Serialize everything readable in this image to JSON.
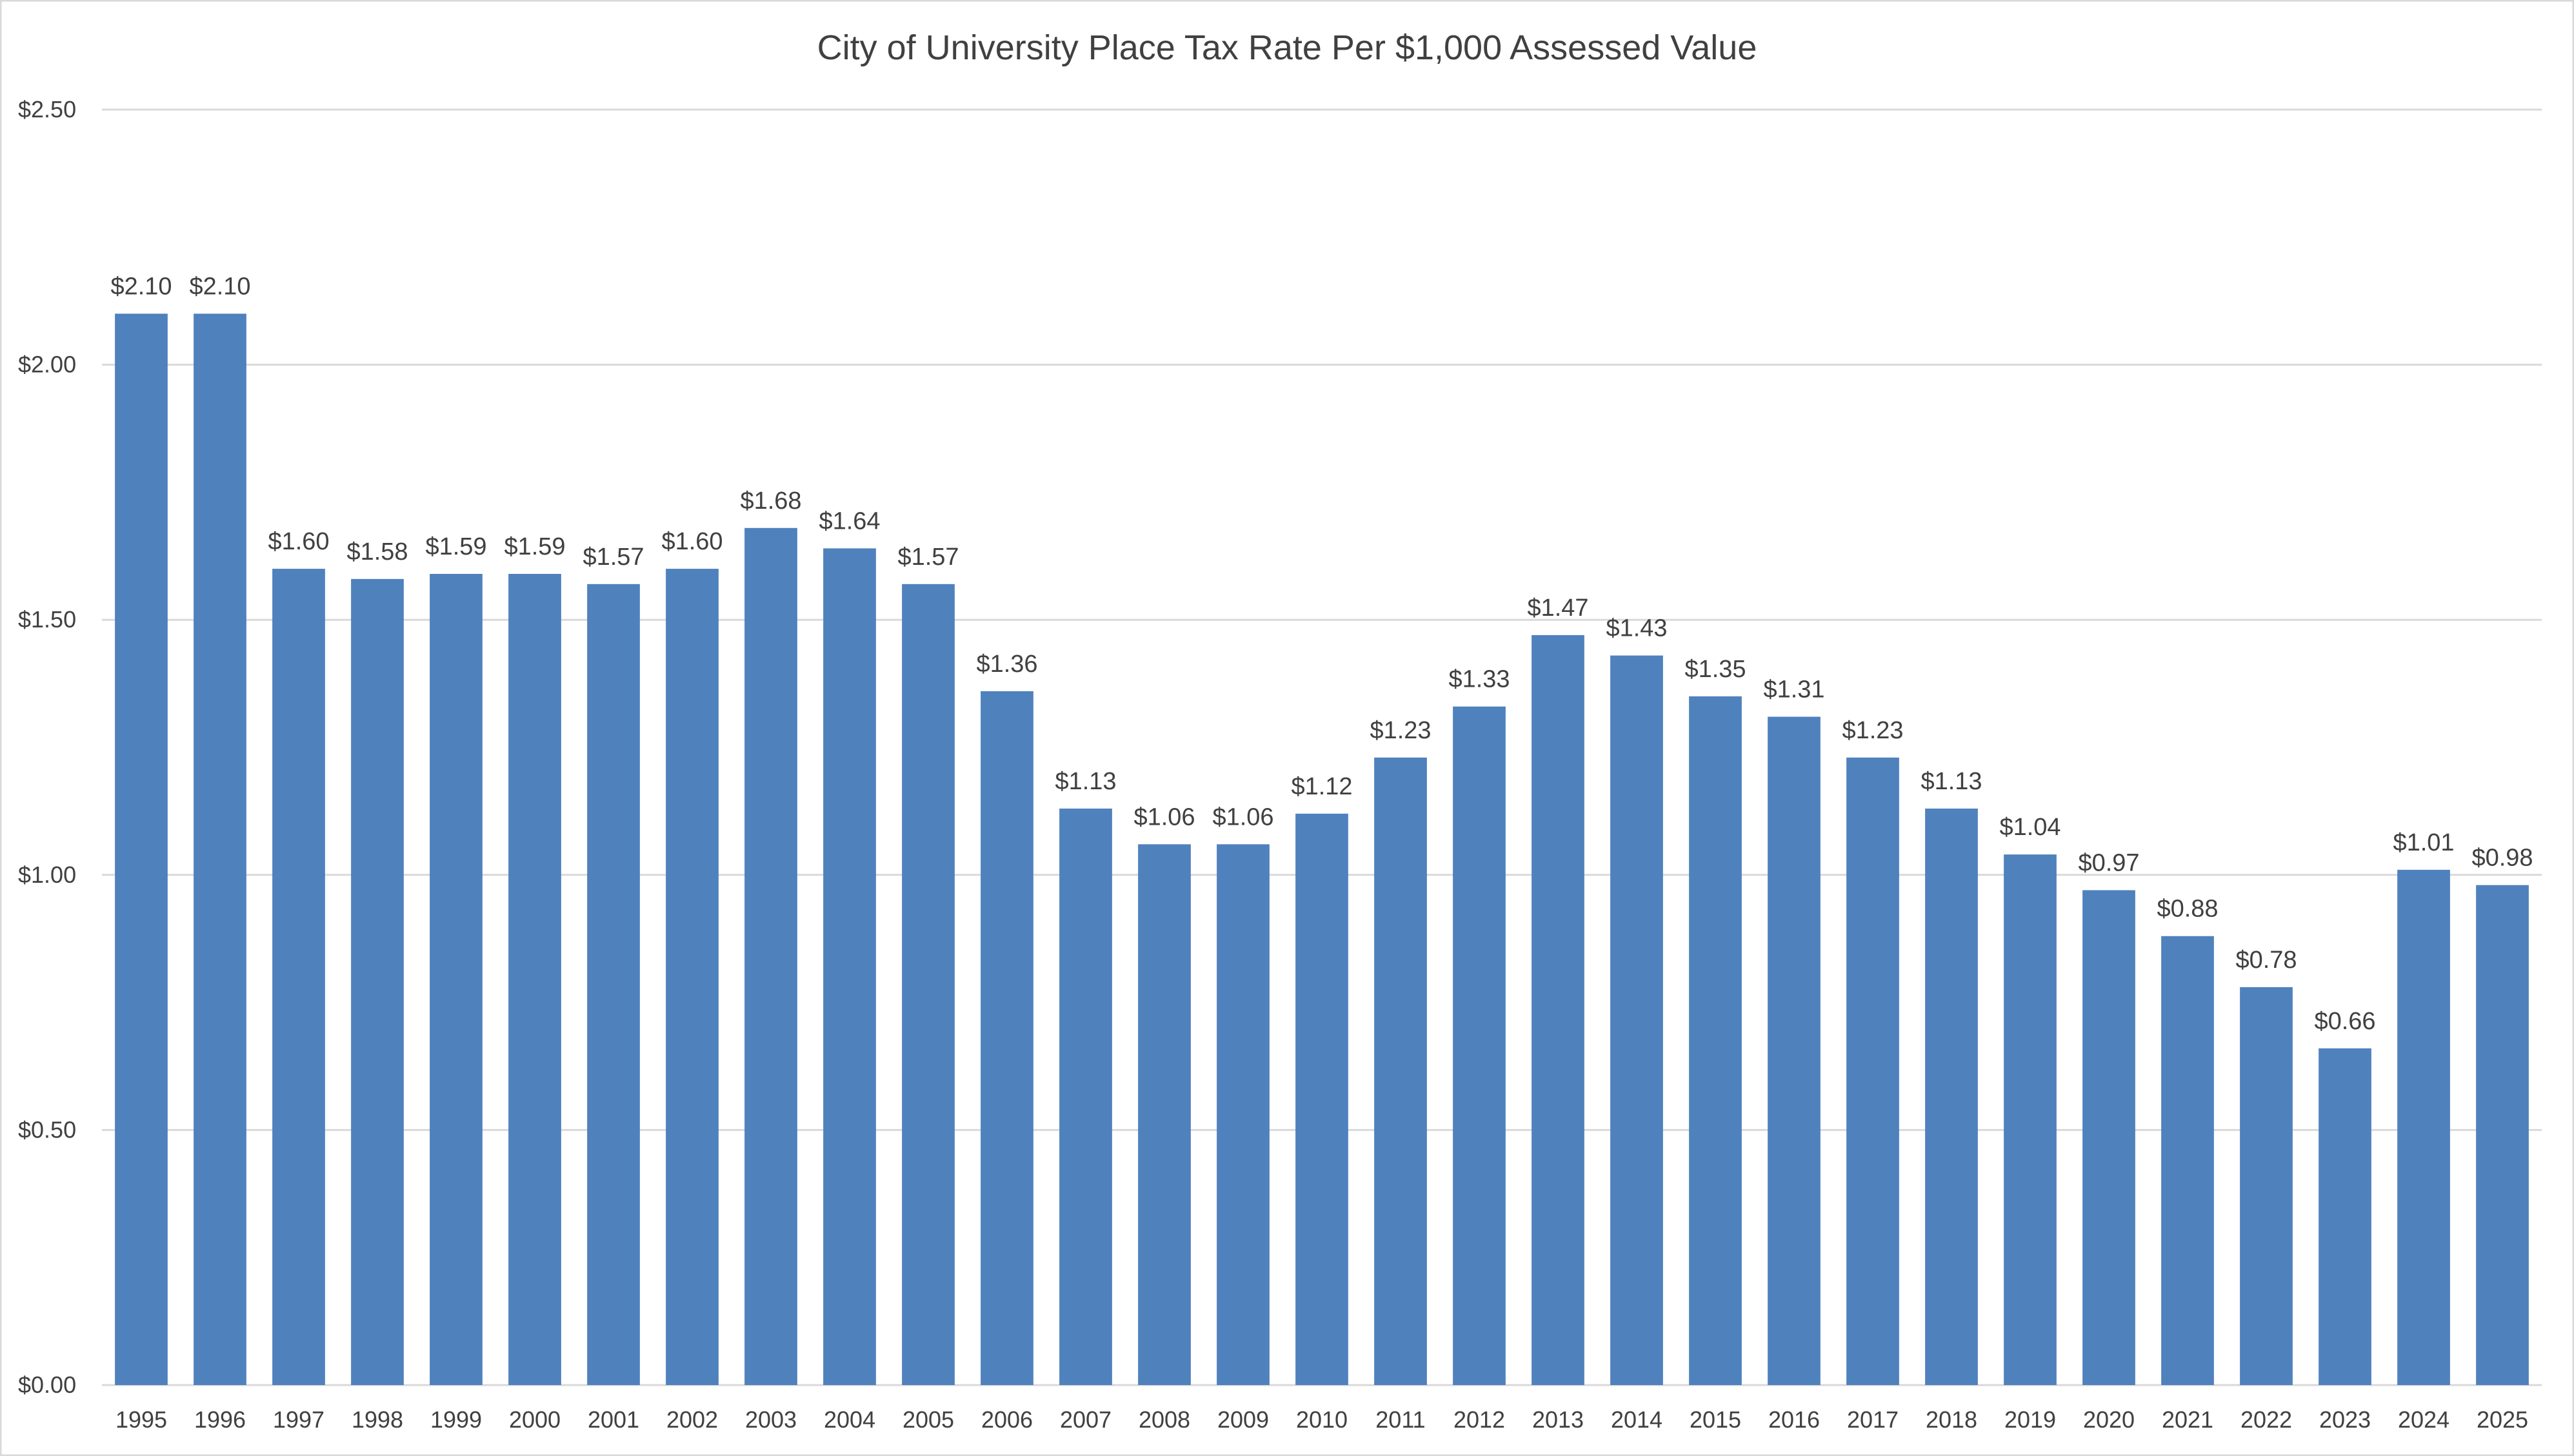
{
  "chart_data": {
    "type": "bar",
    "title": "City of University Place Tax Rate Per $1,000 Assessed Value",
    "xlabel": "",
    "ylabel": "",
    "ylim": [
      0,
      2.5
    ],
    "y_ticks": [
      "$0.00",
      "$0.50",
      "$1.00",
      "$1.50",
      "$2.00",
      "$2.50"
    ],
    "grid": true,
    "bar_color": "#4f81bd",
    "categories": [
      "1995",
      "1996",
      "1997",
      "1998",
      "1999",
      "2000",
      "2001",
      "2002",
      "2003",
      "2004",
      "2005",
      "2006",
      "2007",
      "2008",
      "2009",
      "2010",
      "2011",
      "2012",
      "2013",
      "2014",
      "2015",
      "2016",
      "2017",
      "2018",
      "2019",
      "2020",
      "2021",
      "2022",
      "2023",
      "2024",
      "2025"
    ],
    "values": [
      2.1,
      2.1,
      1.6,
      1.58,
      1.59,
      1.59,
      1.57,
      1.6,
      1.68,
      1.64,
      1.57,
      1.36,
      1.13,
      1.06,
      1.06,
      1.12,
      1.23,
      1.33,
      1.47,
      1.43,
      1.35,
      1.31,
      1.23,
      1.13,
      1.04,
      0.97,
      0.88,
      0.78,
      0.66,
      1.01,
      0.98
    ],
    "data_labels": [
      "$2.10",
      "$2.10",
      "$1.60",
      "$1.58",
      "$1.59",
      "$1.59",
      "$1.57",
      "$1.60",
      "$1.68",
      "$1.64",
      "$1.57",
      "$1.36",
      "$1.13",
      "$1.06",
      "$1.06",
      "$1.12",
      "$1.23",
      "$1.33",
      "$1.47",
      "$1.43",
      "$1.35",
      "$1.31",
      "$1.23",
      "$1.13",
      "$1.04",
      "$0.97",
      "$0.88",
      "$0.78",
      "$0.66",
      "$1.01",
      "$0.98"
    ]
  }
}
